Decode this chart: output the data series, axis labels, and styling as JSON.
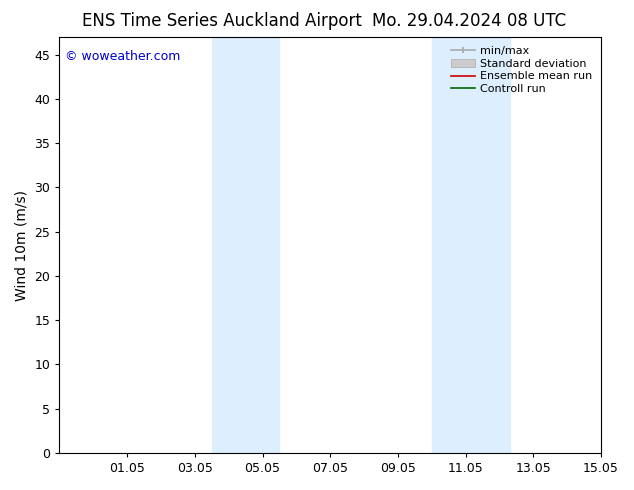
{
  "title_left": "ENS Time Series Auckland Airport",
  "title_right": "Mo. 29.04.2024 08 UTC",
  "ylabel": "Wind 10m (m/s)",
  "ylim": [
    0,
    47
  ],
  "yticks": [
    0,
    5,
    10,
    15,
    20,
    25,
    30,
    35,
    40,
    45
  ],
  "xtick_labels": [
    "01.05",
    "03.05",
    "05.05",
    "07.05",
    "09.05",
    "11.05",
    "13.05",
    "15.05"
  ],
  "xtick_positions": [
    2,
    4,
    6,
    8,
    10,
    12,
    14,
    16
  ],
  "xlim": [
    0,
    16
  ],
  "background_color": "#ffffff",
  "plot_bg_color": "#ffffff",
  "shaded_regions": [
    {
      "x_start": 4.5,
      "x_end": 5.5,
      "color": "#ddeeff"
    },
    {
      "x_start": 5.5,
      "x_end": 6.5,
      "color": "#d0e8f8"
    },
    {
      "x_start": 11.0,
      "x_end": 11.7,
      "color": "#d0e8f8"
    },
    {
      "x_start": 11.7,
      "x_end": 13.3,
      "color": "#ddeeff"
    }
  ],
  "watermark_text": "© woweather.com",
  "watermark_color": "#0000cc",
  "watermark_fontsize": 9,
  "title_fontsize": 12,
  "axis_fontsize": 10,
  "tick_fontsize": 9
}
